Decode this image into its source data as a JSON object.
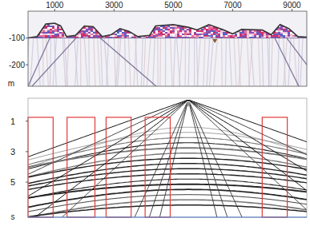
{
  "chart_data": [
    {
      "type": "profile",
      "xlim": [
        100,
        9500
      ],
      "xticks": [
        1000,
        3000,
        5000,
        7000,
        9000
      ],
      "ylim": [
        -280,
        0
      ],
      "yticks": [
        -100,
        -200
      ],
      "y_label": "m",
      "x": [
        100,
        400,
        700,
        1000,
        1200,
        1400,
        1700,
        2000,
        2300,
        2600,
        2900,
        3200,
        3500,
        3800,
        4200,
        4400,
        5000,
        5500,
        5800,
        6200,
        6700,
        7000,
        7300,
        8000,
        8300,
        8600,
        8900,
        9200,
        9500
      ],
      "values": [
        -100,
        -95,
        -48,
        -45,
        -55,
        -95,
        -90,
        -55,
        -58,
        -95,
        -88,
        -65,
        -75,
        -95,
        -90,
        -55,
        -50,
        -60,
        -70,
        -50,
        -70,
        -85,
        -68,
        -70,
        -88,
        -50,
        -65,
        -95,
        -97
      ],
      "color": "#333333",
      "source_x": 6400,
      "source_y": -113
    },
    {
      "type": "gather",
      "xlim": [
        0,
        100
      ],
      "ylim": [
        -0.5,
        7.3
      ],
      "yticks": [
        1,
        3,
        5
      ],
      "y_label": "s",
      "tick_labels": "y",
      "windows": [
        [
          0,
          9
        ],
        [
          14,
          24
        ],
        [
          28,
          37
        ],
        [
          42,
          51
        ],
        [
          84,
          93
        ]
      ],
      "window_t": [
        0.75,
        7.3
      ],
      "color": "#e03a3a",
      "source_trace": 57.5
    }
  ]
}
